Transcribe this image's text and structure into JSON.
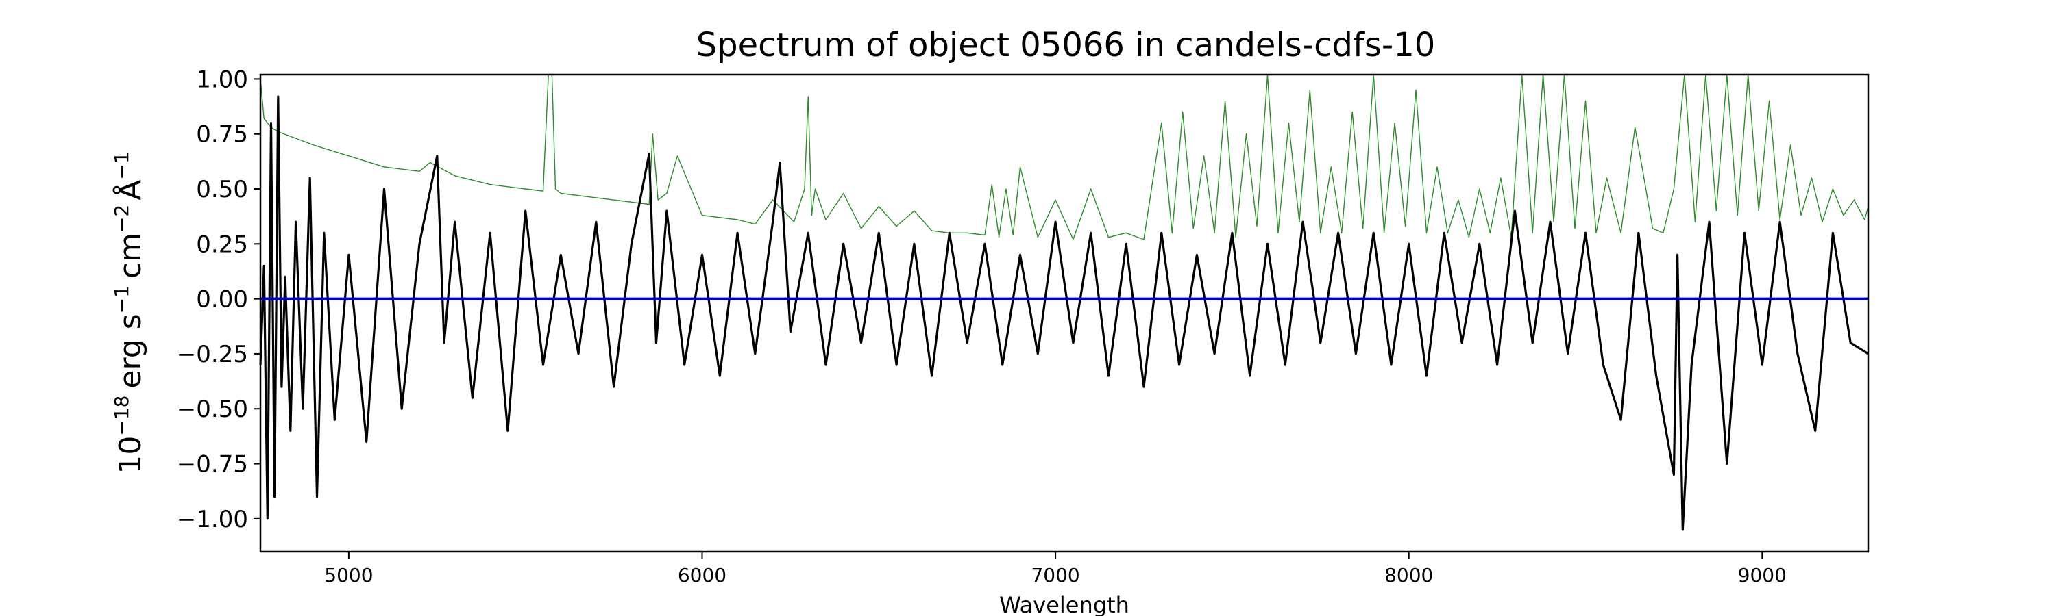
{
  "chart_data": {
    "type": "line",
    "title": "Spectrum of object 05066 in candels-cdfs-10",
    "xlabel": "Wavelength",
    "ylabel_parts": {
      "base": "10",
      "exp": "−18",
      "unit1": "erg s",
      "exp1": "−1",
      "unit2": "cm",
      "exp2": "−2",
      "unit3": "Å",
      "exp3": "−1"
    },
    "xlim": [
      4750,
      9300
    ],
    "ylim": [
      -1.15,
      1.02
    ],
    "x_ticks": [
      5000,
      6000,
      7000,
      8000,
      9000
    ],
    "x_tick_labels": [
      "5000",
      "6000",
      "7000",
      "8000",
      "9000"
    ],
    "y_ticks": [
      -1.0,
      -0.75,
      -0.5,
      -0.25,
      0.0,
      0.25,
      0.5,
      0.75,
      1.0
    ],
    "y_tick_labels": [
      "−1.00",
      "−0.75",
      "−0.50",
      "−0.25",
      "0.00",
      "0.25",
      "0.50",
      "0.75",
      "1.00"
    ],
    "grid": false,
    "series": [
      {
        "role": "flux",
        "color": "#000000",
        "x": [
          4750,
          4760,
          4770,
          4780,
          4790,
          4800,
          4810,
          4820,
          4835,
          4850,
          4870,
          4890,
          4910,
          4930,
          4960,
          5000,
          5050,
          5100,
          5150,
          5200,
          5250,
          5270,
          5300,
          5350,
          5400,
          5450,
          5500,
          5550,
          5600,
          5650,
          5700,
          5750,
          5800,
          5850,
          5870,
          5900,
          5950,
          6000,
          6050,
          6100,
          6150,
          6200,
          6220,
          6250,
          6300,
          6350,
          6400,
          6450,
          6500,
          6550,
          6600,
          6650,
          6700,
          6750,
          6800,
          6850,
          6900,
          6950,
          7000,
          7050,
          7100,
          7150,
          7200,
          7250,
          7300,
          7350,
          7400,
          7450,
          7500,
          7550,
          7600,
          7650,
          7700,
          7750,
          7800,
          7850,
          7900,
          7950,
          8000,
          8050,
          8100,
          8150,
          8200,
          8250,
          8300,
          8350,
          8400,
          8450,
          8500,
          8550,
          8600,
          8650,
          8700,
          8750,
          8760,
          8775,
          8800,
          8850,
          8900,
          8950,
          9000,
          9050,
          9100,
          9150,
          9200,
          9250,
          9300
        ],
        "y": [
          -0.3,
          0.15,
          -1.0,
          0.8,
          -0.9,
          0.92,
          -0.4,
          0.1,
          -0.6,
          0.35,
          -0.5,
          0.55,
          -0.9,
          0.3,
          -0.55,
          0.2,
          -0.65,
          0.5,
          -0.5,
          0.25,
          0.65,
          -0.2,
          0.35,
          -0.45,
          0.3,
          -0.6,
          0.4,
          -0.3,
          0.2,
          -0.25,
          0.35,
          -0.4,
          0.25,
          0.66,
          -0.2,
          0.4,
          -0.3,
          0.2,
          -0.35,
          0.3,
          -0.25,
          0.35,
          0.62,
          -0.15,
          0.3,
          -0.3,
          0.25,
          -0.2,
          0.3,
          -0.3,
          0.25,
          -0.35,
          0.3,
          -0.2,
          0.25,
          -0.3,
          0.2,
          -0.25,
          0.35,
          -0.2,
          0.3,
          -0.35,
          0.25,
          -0.4,
          0.3,
          -0.3,
          0.2,
          -0.25,
          0.3,
          -0.35,
          0.25,
          -0.3,
          0.35,
          -0.2,
          0.3,
          -0.25,
          0.3,
          -0.3,
          0.25,
          -0.35,
          0.3,
          -0.2,
          0.25,
          -0.3,
          0.4,
          -0.2,
          0.35,
          -0.25,
          0.3,
          -0.3,
          -0.55,
          0.3,
          -0.35,
          -0.8,
          0.2,
          -1.05,
          -0.3,
          0.35,
          -0.75,
          0.3,
          -0.3,
          0.35,
          -0.25,
          -0.6,
          0.3,
          -0.2,
          -0.25
        ]
      },
      {
        "role": "error",
        "color": "#2e8b2e",
        "x": [
          4750,
          4760,
          4780,
          4800,
          4850,
          4900,
          5000,
          5100,
          5200,
          5230,
          5300,
          5400,
          5500,
          5550,
          5565,
          5575,
          5585,
          5600,
          5700,
          5800,
          5850,
          5860,
          5875,
          5900,
          5930,
          6000,
          6100,
          6150,
          6200,
          6260,
          6290,
          6300,
          6310,
          6320,
          6350,
          6400,
          6450,
          6500,
          6550,
          6600,
          6650,
          6700,
          6750,
          6800,
          6820,
          6840,
          6860,
          6880,
          6900,
          6950,
          7000,
          7050,
          7100,
          7150,
          7200,
          7250,
          7300,
          7330,
          7360,
          7390,
          7420,
          7450,
          7480,
          7510,
          7540,
          7570,
          7600,
          7630,
          7660,
          7690,
          7720,
          7750,
          7780,
          7810,
          7840,
          7870,
          7900,
          7930,
          7960,
          7990,
          8020,
          8050,
          8080,
          8110,
          8140,
          8170,
          8200,
          8230,
          8260,
          8290,
          8320,
          8350,
          8380,
          8410,
          8440,
          8470,
          8500,
          8530,
          8560,
          8600,
          8640,
          8660,
          8690,
          8720,
          8750,
          8780,
          8810,
          8840,
          8870,
          8900,
          8930,
          8960,
          8990,
          9020,
          9050,
          9080,
          9110,
          9140,
          9170,
          9200,
          9230,
          9260,
          9290,
          9300
        ],
        "y": [
          1.0,
          0.82,
          0.78,
          0.76,
          0.73,
          0.7,
          0.65,
          0.6,
          0.58,
          0.62,
          0.56,
          0.52,
          0.5,
          0.49,
          1.02,
          1.02,
          0.5,
          0.48,
          0.46,
          0.44,
          0.43,
          0.75,
          0.45,
          0.48,
          0.65,
          0.38,
          0.36,
          0.34,
          0.45,
          0.35,
          0.5,
          0.92,
          0.38,
          0.5,
          0.36,
          0.48,
          0.32,
          0.42,
          0.33,
          0.4,
          0.31,
          0.3,
          0.3,
          0.29,
          0.52,
          0.28,
          0.5,
          0.29,
          0.6,
          0.28,
          0.45,
          0.27,
          0.5,
          0.28,
          0.3,
          0.27,
          0.8,
          0.3,
          0.85,
          0.32,
          0.65,
          0.3,
          0.9,
          0.28,
          0.75,
          0.33,
          1.02,
          0.3,
          0.8,
          0.35,
          0.95,
          0.3,
          0.6,
          0.3,
          0.85,
          0.32,
          1.02,
          0.3,
          0.8,
          0.33,
          0.95,
          0.3,
          0.6,
          0.3,
          0.45,
          0.28,
          0.5,
          0.3,
          0.55,
          0.28,
          1.02,
          0.3,
          1.02,
          0.35,
          1.02,
          0.32,
          0.9,
          0.3,
          0.55,
          0.3,
          0.78,
          0.6,
          0.32,
          0.3,
          0.5,
          1.02,
          0.35,
          1.02,
          0.4,
          1.02,
          0.38,
          1.02,
          0.4,
          0.9,
          0.36,
          0.7,
          0.38,
          0.55,
          0.35,
          0.5,
          0.38,
          0.45,
          0.36,
          0.42
        ]
      },
      {
        "role": "zero-line",
        "color": "#0000cc",
        "x": [
          4750,
          9300
        ],
        "y": [
          0.0,
          0.0
        ]
      }
    ]
  }
}
